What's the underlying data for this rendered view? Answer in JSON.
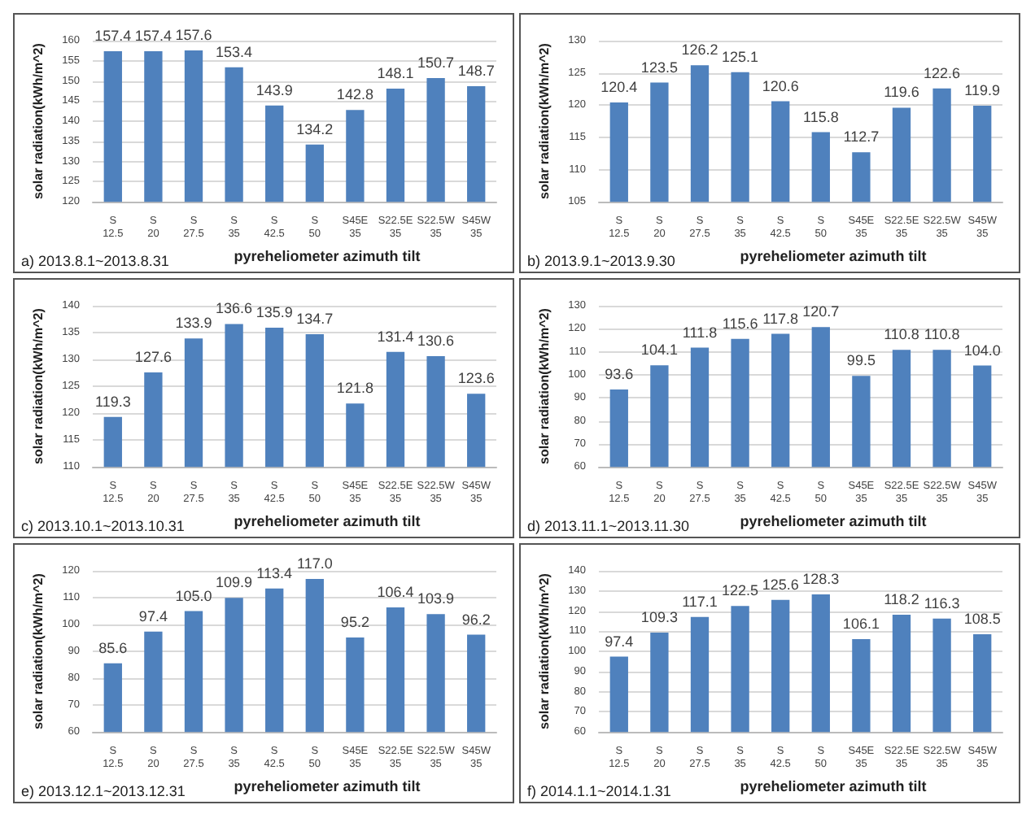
{
  "chart_data": [
    {
      "type": "bar",
      "categories": [
        "S\n12.5",
        "S\n20",
        "S\n27.5",
        "S\n35",
        "S\n42.5",
        "S\n50",
        "S45E\n35",
        "S22.5E\n35",
        "S22.5W\n35",
        "S45W\n35"
      ],
      "values": [
        157.4,
        157.4,
        157.6,
        153.4,
        143.9,
        134.2,
        142.8,
        148.1,
        150.7,
        148.7
      ],
      "color": "#4f81bd",
      "xlabel": "pyreheliometer azimuth tilt",
      "ylabel": "solar radiation(kWh/m^2)",
      "ylim": [
        120,
        160
      ],
      "yticks": [
        120,
        125,
        130,
        135,
        140,
        145,
        150,
        155,
        160
      ],
      "grid": "y",
      "data_labels": true,
      "annotations": [
        "a) 2013.8.1~2013.8.31"
      ]
    },
    {
      "type": "bar",
      "categories": [
        "S\n12.5",
        "S\n20",
        "S\n27.5",
        "S\n35",
        "S\n42.5",
        "S\n50",
        "S45E\n35",
        "S22.5E\n35",
        "S22.5W\n35",
        "S45W\n35"
      ],
      "values": [
        120.4,
        123.5,
        126.2,
        125.1,
        120.6,
        115.8,
        112.7,
        119.6,
        122.6,
        119.9
      ],
      "color": "#4f81bd",
      "xlabel": "pyreheliometer azimuth tilt",
      "ylabel": "solar radiation(kWh/m^2)",
      "ylim": [
        105,
        130
      ],
      "yticks": [
        105,
        110,
        115,
        120,
        125,
        130
      ],
      "grid": "y",
      "data_labels": true,
      "annotations": [
        "b) 2013.9.1~2013.9.30"
      ]
    },
    {
      "type": "bar",
      "categories": [
        "S\n12.5",
        "S\n20",
        "S\n27.5",
        "S\n35",
        "S\n42.5",
        "S\n50",
        "S45E\n35",
        "S22.5E\n35",
        "S22.5W\n35",
        "S45W\n35"
      ],
      "values": [
        119.3,
        127.6,
        133.9,
        136.6,
        135.9,
        134.7,
        121.8,
        131.4,
        130.6,
        123.6
      ],
      "color": "#4f81bd",
      "xlabel": "pyreheliometer azimuth tilt",
      "ylabel": "solar radiation(kWh/m^2)",
      "ylim": [
        110,
        140
      ],
      "yticks": [
        110,
        115,
        120,
        125,
        130,
        135,
        140
      ],
      "grid": "y",
      "data_labels": true,
      "annotations": [
        "c) 2013.10.1~2013.10.31"
      ]
    },
    {
      "type": "bar",
      "categories": [
        "S\n12.5",
        "S\n20",
        "S\n27.5",
        "S\n35",
        "S\n42.5",
        "S\n50",
        "S45E\n35",
        "S22.5E\n35",
        "S22.5W\n35",
        "S45W\n35"
      ],
      "values": [
        93.6,
        104.1,
        111.8,
        115.6,
        117.8,
        120.7,
        99.5,
        110.8,
        110.8,
        104.0
      ],
      "value_labels": [
        "93.6",
        "104.1",
        "111.8",
        "115.6",
        "117.8",
        "120.7",
        "99.5",
        "110.8",
        "110.8",
        "104.0"
      ],
      "color": "#4f81bd",
      "xlabel": "pyreheliometer azimuth tilt",
      "ylabel": "solar radiation(kWh/m^2)",
      "ylim": [
        60,
        130
      ],
      "yticks": [
        60,
        70,
        80,
        90,
        100,
        110,
        120,
        130
      ],
      "grid": "y",
      "annotations": [
        "d) 2013.11.1~2013.11.30"
      ]
    },
    {
      "type": "bar",
      "categories": [
        "S\n12.5",
        "S\n20",
        "S\n27.5",
        "S\n35",
        "S\n42.5",
        "S\n50",
        "S45E\n35",
        "S22.5E\n35",
        "S22.5W\n35",
        "S45W\n35"
      ],
      "values": [
        85.6,
        97.4,
        105.0,
        109.9,
        113.4,
        117.0,
        95.2,
        106.4,
        103.9,
        96.2
      ],
      "value_labels": [
        "85.6",
        "97.4",
        "105.0",
        "109.9",
        "113.4",
        "117.0",
        "95.2",
        "106.4",
        "103.9",
        "96.2"
      ],
      "color": "#4f81bd",
      "xlabel": "pyreheliometer azimuth tilt",
      "ylabel": "solar radiation(kWh/m^2)",
      "ylim": [
        60,
        120
      ],
      "yticks": [
        60,
        70,
        80,
        90,
        100,
        110,
        120
      ],
      "grid": "y",
      "annotations": [
        "e) 2013.12.1~2013.12.31"
      ]
    },
    {
      "type": "bar",
      "categories": [
        "S\n12.5",
        "S\n20",
        "S\n27.5",
        "S\n35",
        "S\n42.5",
        "S\n50",
        "S45E\n35",
        "S22.5E\n35",
        "S22.5W\n35",
        "S45W\n35"
      ],
      "values": [
        97.4,
        109.3,
        117.1,
        122.5,
        125.6,
        128.3,
        106.1,
        118.2,
        116.3,
        108.5
      ],
      "color": "#4f81bd",
      "xlabel": "pyreheliometer azimuth tilt",
      "ylabel": "solar radiation(kWh/m^2)",
      "ylim": [
        60,
        140
      ],
      "yticks": [
        60,
        70,
        80,
        90,
        100,
        110,
        120,
        130,
        140
      ],
      "grid": "y",
      "data_labels": true,
      "annotations": [
        "f) 2014.1.1~2014.1.31"
      ]
    }
  ]
}
